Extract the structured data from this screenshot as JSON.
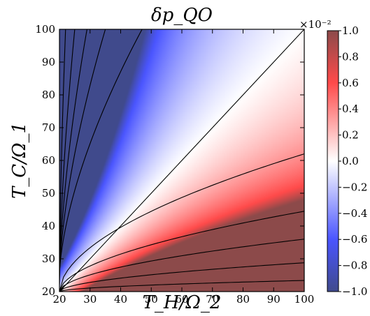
{
  "chart_data": {
    "type": "heatmap",
    "title": "δp_QO",
    "xlabel": "T_H/Ω_2",
    "ylabel": "T_C/Ω_1",
    "xlim": [
      20,
      100
    ],
    "ylim": [
      20,
      100
    ],
    "x_ticks": [
      "20",
      "30",
      "40",
      "50",
      "60",
      "70",
      "80",
      "90",
      "100"
    ],
    "y_ticks": [
      "20",
      "30",
      "40",
      "50",
      "60",
      "70",
      "80",
      "90",
      "100"
    ],
    "colorbar": {
      "multiplier": "×10⁻²",
      "range": [
        -1.0,
        1.0
      ],
      "ticks": [
        "1.0",
        "0.8",
        "0.6",
        "0.4",
        "0.2",
        "0.0",
        "−0.2",
        "−0.4",
        "−0.6",
        "−0.8",
        "−1.0"
      ],
      "colormap": "seismic (blue-white-red)",
      "colors": {
        "negative": "#3333ff",
        "zero": "#ffffff",
        "positive": "#ff3333"
      }
    },
    "contour_lines": [
      {
        "level": -0.9,
        "points": [
          [
            20,
            21.0
          ],
          [
            22.0,
            100
          ]
        ]
      },
      {
        "level": -0.7,
        "points": [
          [
            20,
            22.0
          ],
          [
            25.0,
            100
          ]
        ]
      },
      {
        "level": -0.5,
        "points": [
          [
            20,
            22.7
          ],
          [
            29.0,
            100
          ]
        ]
      },
      {
        "level": -0.3,
        "points": [
          [
            20,
            23.6
          ],
          [
            35.0,
            100
          ]
        ]
      },
      {
        "level": -0.1,
        "points": [
          [
            20,
            24.6
          ],
          [
            47.0,
            100
          ]
        ]
      },
      {
        "level": 0.0,
        "points": [
          [
            20,
            20
          ],
          [
            100,
            100
          ]
        ]
      },
      {
        "level": 0.1,
        "points": [
          [
            20,
            20
          ],
          [
            100,
            62.0
          ]
        ]
      },
      {
        "level": 0.3,
        "points": [
          [
            20,
            20
          ],
          [
            100,
            44.5
          ]
        ]
      },
      {
        "level": 0.5,
        "points": [
          [
            20,
            20
          ],
          [
            100,
            36.0
          ]
        ]
      },
      {
        "level": 0.7,
        "points": [
          [
            20,
            20
          ],
          [
            100,
            28.8
          ]
        ]
      },
      {
        "level": 0.9,
        "points": [
          [
            20,
            20
          ],
          [
            100,
            23.4
          ]
        ]
      }
    ]
  }
}
